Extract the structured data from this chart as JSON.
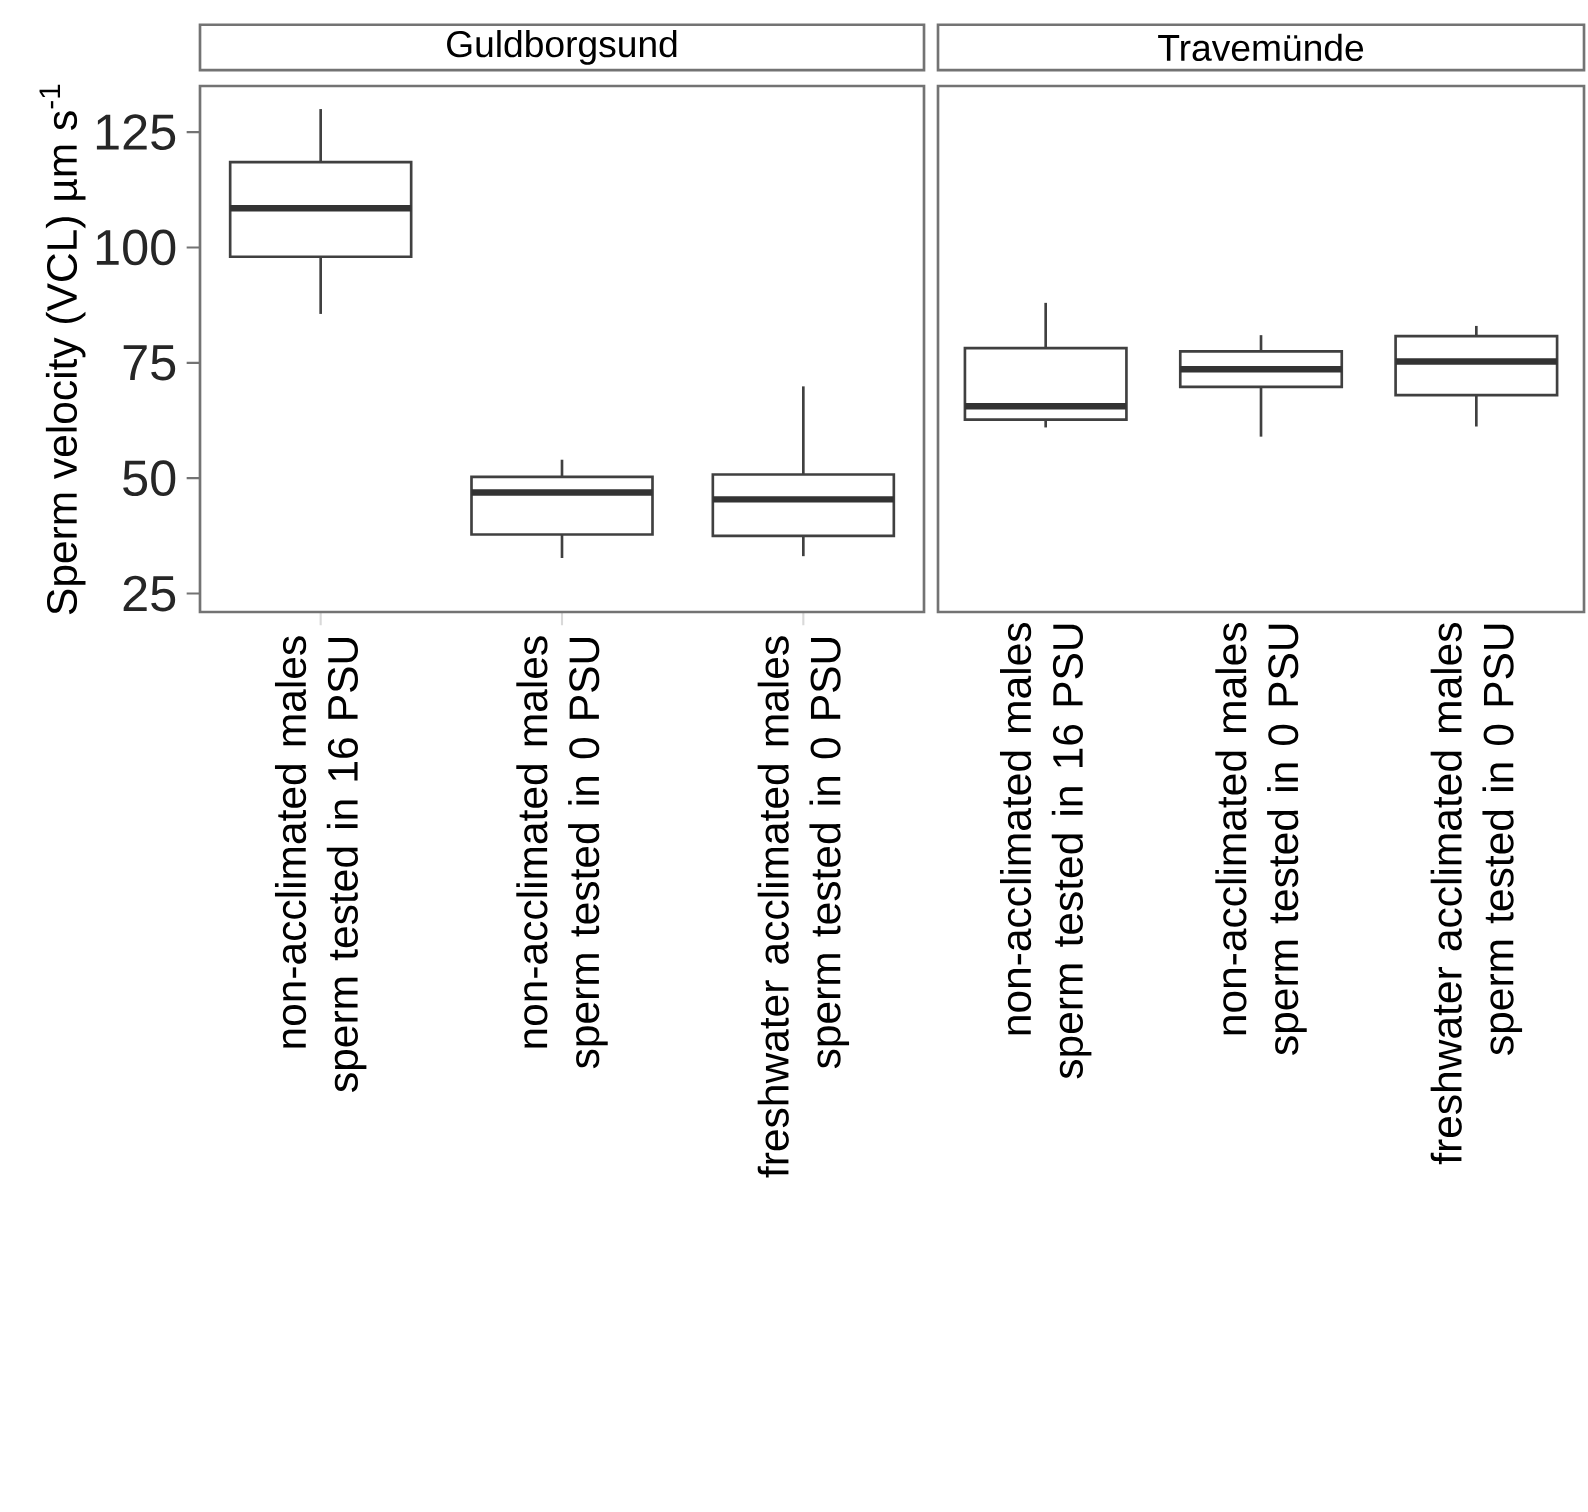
{
  "chart_data": [
    {
      "type": "box",
      "title": "Guldborgsund",
      "ylabel": "Sperm velocity (VCL) µm s$^{-1}$",
      "categories": [
        "non-acclimated males sperm tested in 16 PSU",
        "non-acclimated males sperm tested in 0 PSU",
        "freshwater acclimated males sperm tested in 0 PSU"
      ],
      "ylim": [
        21,
        135
      ],
      "yticks": [
        25,
        50,
        75,
        100,
        125
      ],
      "boxes": [
        {
          "low": 85.6,
          "q1": 98,
          "median": 108.5,
          "q3": 118.5,
          "high": 130
        },
        {
          "low": 32.7,
          "q1": 37.8,
          "median": 46.9,
          "q3": 50.3,
          "high": 54
        },
        {
          "low": 33.1,
          "q1": 37.5,
          "median": 45.4,
          "q3": 50.8,
          "high": 69.9
        }
      ]
    },
    {
      "type": "box",
      "title": "Travemünde",
      "categories": [
        "non-acclimated males sperm tested in 16 PSU",
        "non-acclimated males sperm tested in 0 PSU",
        "freshwater acclimated males sperm tested in 0 PSU"
      ],
      "ylim": [
        21,
        135
      ],
      "yticks": [
        25,
        50,
        75,
        100,
        125
      ],
      "tick_labels": "x",
      "boxes": [
        {
          "low": 61,
          "q1": 62.7,
          "median": 65.6,
          "q3": 78.2,
          "high": 88
        },
        {
          "low": 59,
          "q1": 69.8,
          "median": 73.6,
          "q3": 77.5,
          "high": 81
        },
        {
          "low": 61.2,
          "q1": 68,
          "median": 75.3,
          "q3": 80.8,
          "high": 83
        }
      ]
    }
  ]
}
